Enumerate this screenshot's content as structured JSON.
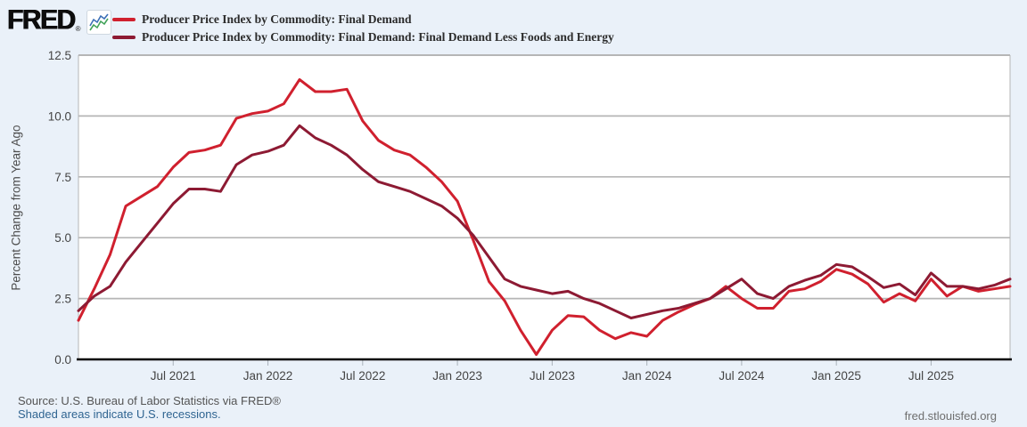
{
  "branding": {
    "logo_text": "FRED",
    "registered_mark": "®"
  },
  "footer": {
    "source": "Source: U.S. Bureau of Labor Statistics via FRED®",
    "recessions_note": "Shaded areas indicate U.S. recessions.",
    "site_link": "fred.stlouisfed.org"
  },
  "colors": {
    "background": "#eaf1f9",
    "plot_background": "#ffffff",
    "grid": "#b6b6b6",
    "frame": "#c2c2c2",
    "axis": "#000000",
    "tick_label": "#444444",
    "series1": "#d0202e",
    "series2": "#8d1a33",
    "spark_blue": "#3b6fb6",
    "spark_green": "#42a35a"
  },
  "chart_data": {
    "type": "line",
    "title": "",
    "xlabel": "",
    "ylabel": "Percent Change from Year Ago",
    "ylim": [
      0,
      12.5
    ],
    "grid": true,
    "legend_position": "top-left",
    "yticks": [
      0.0,
      2.5,
      5.0,
      7.5,
      10.0,
      12.5
    ],
    "ytick_labels": [
      "0.0",
      "2.5",
      "5.0",
      "7.5",
      "10.0",
      "12.5"
    ],
    "x": [
      "2021-01",
      "2021-02",
      "2021-03",
      "2021-04",
      "2021-05",
      "2021-06",
      "2021-07",
      "2021-08",
      "2021-09",
      "2021-10",
      "2021-11",
      "2021-12",
      "2022-01",
      "2022-02",
      "2022-03",
      "2022-04",
      "2022-05",
      "2022-06",
      "2022-07",
      "2022-08",
      "2022-09",
      "2022-10",
      "2022-11",
      "2022-12",
      "2023-01",
      "2023-02",
      "2023-03",
      "2023-04",
      "2023-05",
      "2023-06",
      "2023-07",
      "2023-08",
      "2023-09",
      "2023-10",
      "2023-11",
      "2023-12",
      "2024-01",
      "2024-02",
      "2024-03",
      "2024-04",
      "2024-05",
      "2024-06",
      "2024-07",
      "2024-08",
      "2024-09",
      "2024-10",
      "2024-11",
      "2024-12",
      "2025-01",
      "2025-02",
      "2025-03",
      "2025-04",
      "2025-05",
      "2025-06",
      "2025-07",
      "2025-08",
      "2025-09",
      "2025-10",
      "2025-11",
      "2025-12"
    ],
    "xtick_indices": [
      6,
      12,
      18,
      24,
      30,
      36,
      42,
      48,
      54
    ],
    "xtick_labels": [
      "Jul 2021",
      "Jan 2022",
      "Jul 2022",
      "Jan 2023",
      "Jul 2023",
      "Jan 2024",
      "Jul 2024",
      "Jan 2025",
      "Jul 2025"
    ],
    "series": [
      {
        "name": "Producer Price Index by Commodity: Final Demand",
        "color": "#d0202e",
        "values": [
          1.6,
          2.9,
          4.3,
          6.3,
          6.7,
          7.1,
          7.9,
          8.5,
          8.6,
          8.8,
          9.9,
          10.1,
          10.2,
          10.5,
          11.5,
          11.0,
          11.0,
          11.1,
          9.8,
          9.0,
          8.6,
          8.4,
          7.9,
          7.3,
          6.5,
          4.9,
          3.2,
          2.4,
          1.2,
          0.2,
          1.2,
          1.8,
          1.75,
          1.2,
          0.85,
          1.1,
          0.95,
          1.6,
          1.95,
          2.25,
          2.5,
          3.0,
          2.5,
          2.1,
          2.1,
          2.8,
          2.9,
          3.2,
          3.7,
          3.5,
          3.1,
          2.35,
          2.7,
          2.4,
          3.3,
          2.6,
          3.0,
          2.8,
          2.9,
          3.0
        ]
      },
      {
        "name": "Producer Price Index by Commodity: Final Demand: Final Demand Less Foods and Energy",
        "color": "#8d1a33",
        "values": [
          2.0,
          2.6,
          3.0,
          4.0,
          4.8,
          5.6,
          6.4,
          7.0,
          7.0,
          6.9,
          8.0,
          8.4,
          8.55,
          8.8,
          9.6,
          9.1,
          8.8,
          8.4,
          7.8,
          7.3,
          7.1,
          6.9,
          6.6,
          6.3,
          5.8,
          5.1,
          4.2,
          3.3,
          3.0,
          2.85,
          2.7,
          2.8,
          2.5,
          2.3,
          2.0,
          1.7,
          1.85,
          2.0,
          2.1,
          2.3,
          2.5,
          2.9,
          3.3,
          2.7,
          2.5,
          3.0,
          3.25,
          3.45,
          3.9,
          3.8,
          3.4,
          2.95,
          3.1,
          2.65,
          3.55,
          3.0,
          3.0,
          2.9,
          3.05,
          3.3
        ]
      }
    ]
  }
}
